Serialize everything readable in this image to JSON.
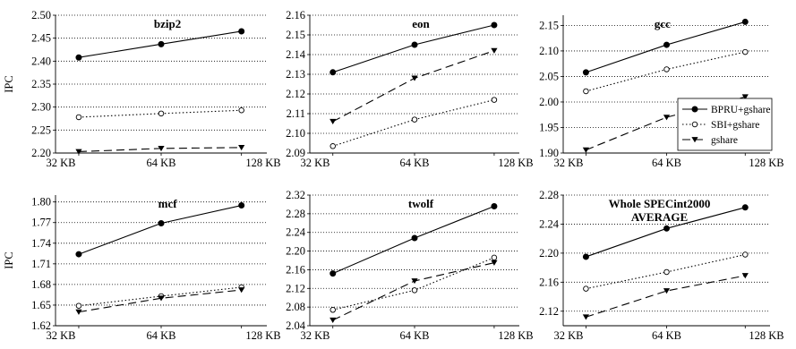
{
  "y_axis_label": "IPC",
  "legend": [
    {
      "name": "BPRU+gshare",
      "style": "solid",
      "marker": "filled-circle"
    },
    {
      "name": "SBI+gshare",
      "style": "dotted",
      "marker": "open-circle"
    },
    {
      "name": "gshare",
      "style": "dashed",
      "marker": "filled-triangle"
    }
  ],
  "colors": {
    "line": "#000000",
    "grid": "#000000",
    "background": "#ffffff"
  },
  "chart_data": [
    {
      "type": "line",
      "title": [
        "bzip2"
      ],
      "categories": [
        "32 KB",
        "64 KB",
        "128 KB"
      ],
      "ylabel": "IPC",
      "ylim": [
        2.2,
        2.5
      ],
      "yticks": [
        "2.20",
        "2.25",
        "2.30",
        "2.35",
        "2.40",
        "2.45",
        "2.50"
      ],
      "grid": true,
      "series": [
        {
          "name": "BPRU+gshare",
          "values": [
            2.408,
            2.437,
            2.465
          ]
        },
        {
          "name": "SBI+gshare",
          "values": [
            2.278,
            2.286,
            2.293
          ]
        },
        {
          "name": "gshare",
          "values": [
            2.203,
            2.21,
            2.212
          ]
        }
      ]
    },
    {
      "type": "line",
      "title": [
        "eon"
      ],
      "categories": [
        "32 KB",
        "64 KB",
        "128 KB"
      ],
      "ylim": [
        2.09,
        2.16
      ],
      "yticks": [
        "2.09",
        "2.10",
        "2.11",
        "2.12",
        "2.13",
        "2.14",
        "2.15",
        "2.16"
      ],
      "grid": true,
      "series": [
        {
          "name": "BPRU+gshare",
          "values": [
            2.131,
            2.145,
            2.155
          ]
        },
        {
          "name": "SBI+gshare",
          "values": [
            2.0935,
            2.107,
            2.117
          ]
        },
        {
          "name": "gshare",
          "values": [
            2.106,
            2.128,
            2.142
          ]
        }
      ]
    },
    {
      "type": "line",
      "title": [
        "gcc"
      ],
      "categories": [
        "32 KB",
        "64 KB",
        "128 KB"
      ],
      "ylim": [
        1.9,
        2.17
      ],
      "yticks": [
        "1.90",
        "1.95",
        "2.00",
        "2.05",
        "2.10",
        "2.15"
      ],
      "grid": true,
      "series": [
        {
          "name": "BPRU+gshare",
          "values": [
            2.058,
            2.112,
            2.157
          ]
        },
        {
          "name": "SBI+gshare",
          "values": [
            2.021,
            2.064,
            2.098
          ]
        },
        {
          "name": "gshare",
          "values": [
            1.906,
            1.97,
            2.01
          ]
        }
      ]
    },
    {
      "type": "line",
      "title": [
        "mcf"
      ],
      "categories": [
        "32 KB",
        "64 KB",
        "128 KB"
      ],
      "ylabel": "IPC",
      "ylim": [
        1.62,
        1.81
      ],
      "yticks": [
        "1.62",
        "1.65",
        "1.68",
        "1.71",
        "1.74",
        "1.77",
        "1.80"
      ],
      "grid": true,
      "series": [
        {
          "name": "BPRU+gshare",
          "values": [
            1.724,
            1.769,
            1.795
          ]
        },
        {
          "name": "SBI+gshare",
          "values": [
            1.649,
            1.663,
            1.676
          ]
        },
        {
          "name": "gshare",
          "values": [
            1.64,
            1.66,
            1.672
          ]
        }
      ]
    },
    {
      "type": "line",
      "title": [
        "twolf"
      ],
      "categories": [
        "32 KB",
        "64 KB",
        "128 KB"
      ],
      "ylim": [
        2.04,
        2.32
      ],
      "yticks": [
        "2.04",
        "2.08",
        "2.12",
        "2.16",
        "2.20",
        "2.24",
        "2.28",
        "2.32"
      ],
      "grid": true,
      "series": [
        {
          "name": "BPRU+gshare",
          "values": [
            2.152,
            2.228,
            2.296
          ]
        },
        {
          "name": "SBI+gshare",
          "values": [
            2.074,
            2.116,
            2.186
          ]
        },
        {
          "name": "gshare",
          "values": [
            2.052,
            2.136,
            2.175
          ]
        }
      ]
    },
    {
      "type": "line",
      "title": [
        "Whole SPECint2000",
        "AVERAGE"
      ],
      "categories": [
        "32 KB",
        "64 KB",
        "128 KB"
      ],
      "ylim": [
        2.1,
        2.28
      ],
      "yticks": [
        "2.12",
        "2.16",
        "2.20",
        "2.24",
        "2.28"
      ],
      "grid": true,
      "series": [
        {
          "name": "BPRU+gshare",
          "values": [
            2.195,
            2.234,
            2.263
          ]
        },
        {
          "name": "SBI+gshare",
          "values": [
            2.151,
            2.174,
            2.198
          ]
        },
        {
          "name": "gshare",
          "values": [
            2.112,
            2.148,
            2.169
          ]
        }
      ]
    }
  ]
}
